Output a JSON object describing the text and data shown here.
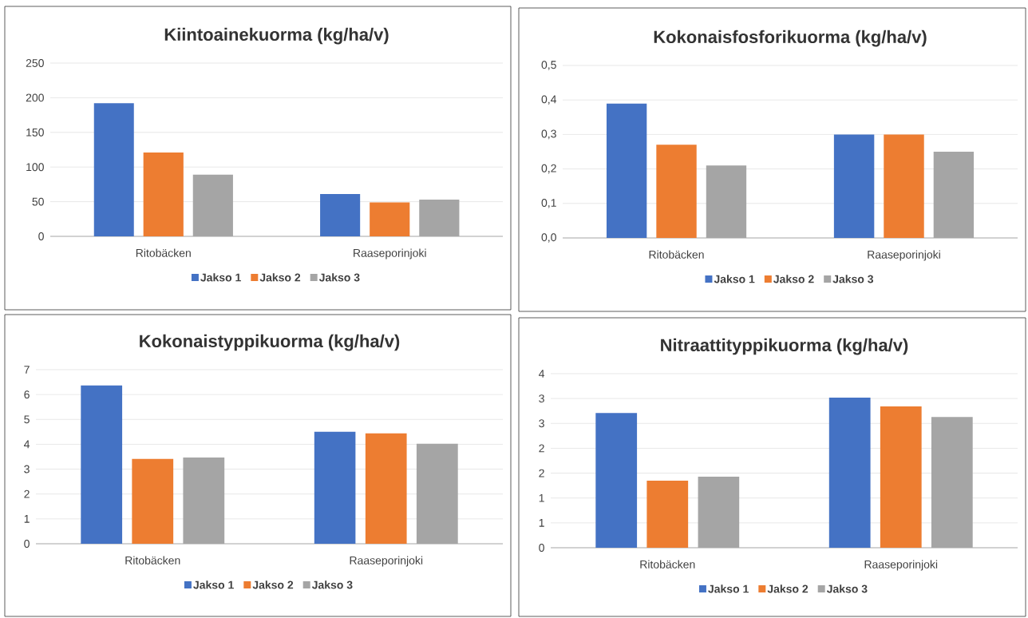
{
  "chart_data": [
    {
      "type": "bar",
      "title": "Kiintoainekuorma (kg/ha/v)",
      "categories": [
        "Ritobäcken",
        "Raaseporinjoki"
      ],
      "series": [
        {
          "name": "Jakso 1",
          "color": "#4472c4",
          "values": [
            192,
            61
          ]
        },
        {
          "name": "Jakso 2",
          "color": "#ed7d31",
          "values": [
            121,
            49
          ]
        },
        {
          "name": "Jakso 3",
          "color": "#a5a5a5",
          "values": [
            89,
            53
          ]
        }
      ],
      "ylim": [
        0,
        250
      ],
      "yticks": [
        0,
        50,
        100,
        150,
        200,
        250
      ],
      "grid": "y",
      "legend": "bottom"
    },
    {
      "type": "bar",
      "title": "Kokonaisfosforikuorma (kg/ha/v)",
      "categories": [
        "Ritobäcken",
        "Raaseporinjoki"
      ],
      "series": [
        {
          "name": "Jakso 1",
          "color": "#4472c4",
          "values": [
            0.39,
            0.3
          ]
        },
        {
          "name": "Jakso 2",
          "color": "#ed7d31",
          "values": [
            0.27,
            0.3
          ]
        },
        {
          "name": "Jakso 3",
          "color": "#a5a5a5",
          "values": [
            0.21,
            0.25
          ]
        }
      ],
      "ylim": [
        0,
        0.5
      ],
      "yticks": [
        {
          "value": 0,
          "label": "0,0"
        },
        {
          "value": 0.1,
          "label": "0,1"
        },
        {
          "value": 0.2,
          "label": "0,2"
        },
        {
          "value": 0.3,
          "label": "0,3"
        },
        {
          "value": 0.4,
          "label": "0,4"
        },
        {
          "value": 0.5,
          "label": "0,5"
        }
      ],
      "grid": "y",
      "legend": "bottom"
    },
    {
      "type": "bar",
      "title": "Kokonaistyppikuorma (kg/ha/v)",
      "categories": [
        "Ritobäcken",
        "Raaseporinjoki"
      ],
      "series": [
        {
          "name": "Jakso 1",
          "color": "#4472c4",
          "values": [
            6.37,
            4.5
          ]
        },
        {
          "name": "Jakso 2",
          "color": "#ed7d31",
          "values": [
            3.41,
            4.44
          ]
        },
        {
          "name": "Jakso 3",
          "color": "#a5a5a5",
          "values": [
            3.47,
            4.02
          ]
        }
      ],
      "ylim": [
        0,
        7
      ],
      "yticks": [
        0,
        1,
        2,
        3,
        4,
        5,
        6,
        7
      ],
      "grid": "y",
      "legend": "bottom"
    },
    {
      "type": "bar",
      "title": "Nitraattityppikuorma (kg/ha/v)",
      "categories": [
        "Ritobäcken",
        "Raaseporinjoki"
      ],
      "series": [
        {
          "name": "Jakso 1",
          "color": "#4472c4",
          "values": [
            2.71,
            3.02
          ]
        },
        {
          "name": "Jakso 2",
          "color": "#ed7d31",
          "values": [
            1.35,
            2.84
          ]
        },
        {
          "name": "Jakso 3",
          "color": "#a5a5a5",
          "values": [
            1.43,
            2.63
          ]
        }
      ],
      "ylim": [
        0,
        3.5
      ],
      "yticks": [
        {
          "value": 0,
          "label": "0"
        },
        {
          "value": 0.5,
          "label": "1"
        },
        {
          "value": 1,
          "label": "1"
        },
        {
          "value": 1.5,
          "label": "2"
        },
        {
          "value": 2,
          "label": "2"
        },
        {
          "value": 2.5,
          "label": "3"
        },
        {
          "value": 3,
          "label": "3"
        },
        {
          "value": 3.5,
          "label": "4"
        }
      ],
      "grid": "y",
      "legend": "bottom"
    }
  ]
}
